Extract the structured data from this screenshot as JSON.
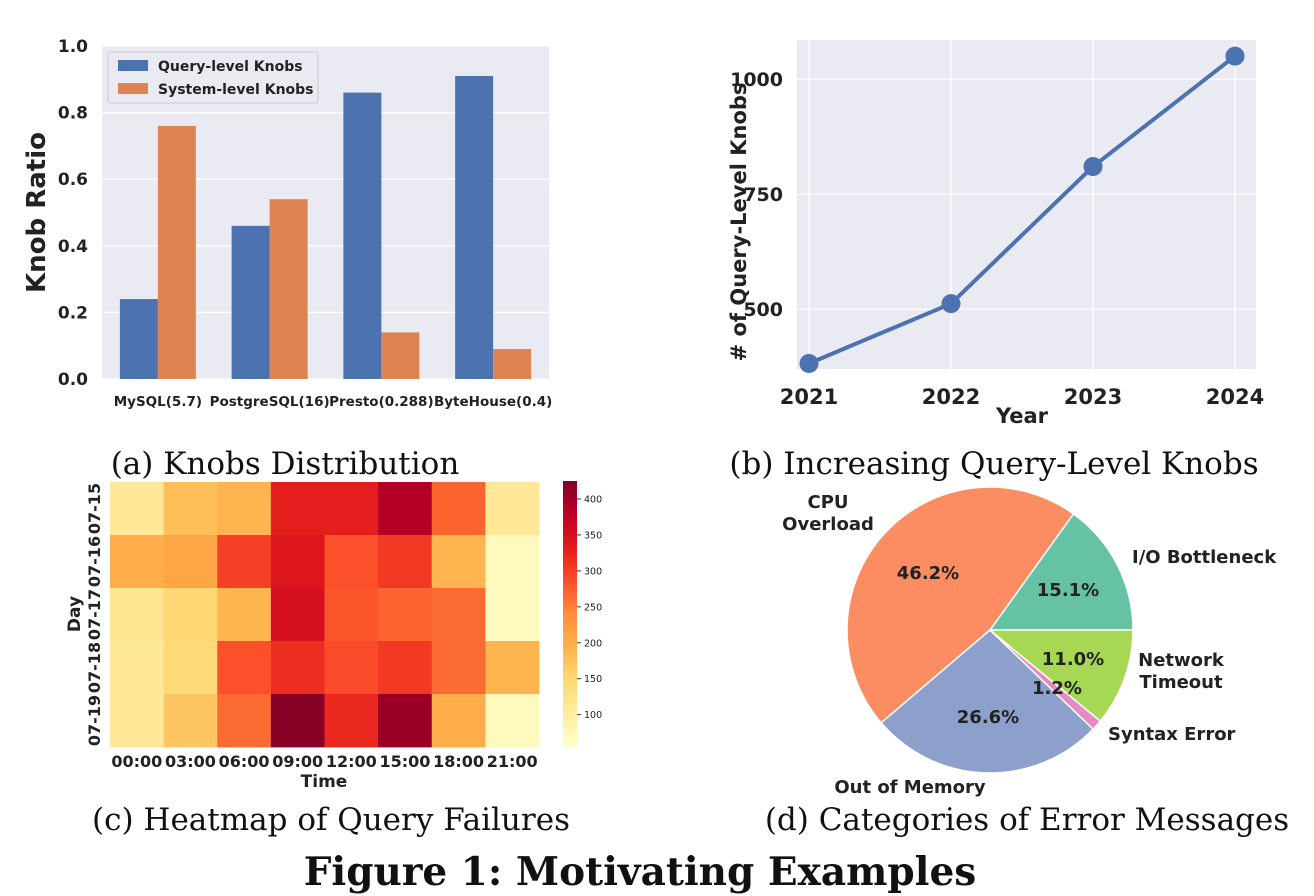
{
  "figure_title": "Figure 1: Motivating Examples",
  "chart_data": [
    {
      "type": "bar",
      "caption": "(a) Knobs Distribution",
      "ylabel": "Knob Ratio",
      "xlabel": "",
      "ylim": [
        0,
        1.0
      ],
      "yticks": [
        "0.0",
        "0.2",
        "0.4",
        "0.6",
        "0.8",
        "1.0"
      ],
      "ytick_values": [
        0,
        0.2,
        0.4,
        0.6,
        0.8,
        1.0
      ],
      "categories": [
        "MySQL(5.7)",
        "PostgreSQL(16)",
        "Presto(0.288)",
        "ByteHouse(0.4)"
      ],
      "series": [
        {
          "name": "Query-level Knobs",
          "color": "#4c72b0",
          "values": [
            0.24,
            0.46,
            0.86,
            0.91
          ]
        },
        {
          "name": "System-level Knobs",
          "color": "#dd8452",
          "values": [
            0.76,
            0.54,
            0.14,
            0.09
          ]
        }
      ],
      "legend_position": "top-left",
      "grid": true
    },
    {
      "type": "line",
      "caption": "(b) Increasing Query-Level Knobs",
      "xlabel": "Year",
      "ylabel": "# of Query-Level Knobs",
      "x": [
        2021,
        2022,
        2023,
        2024
      ],
      "xticks": [
        "2021",
        "2022",
        "2023",
        "2024"
      ],
      "yticks": [
        "500",
        "750",
        "1000"
      ],
      "ytick_values": [
        500,
        750,
        1000
      ],
      "ylim": [
        370,
        1085
      ],
      "series": [
        {
          "color": "#4c72b0",
          "values": [
            382,
            512,
            810,
            1050
          ]
        }
      ],
      "grid": true
    },
    {
      "type": "heatmap",
      "caption": "(c) Heatmap of Query Failures",
      "xlabel": "Time",
      "ylabel": "Day",
      "x": [
        "00:00",
        "03:00",
        "06:00",
        "09:00",
        "12:00",
        "15:00",
        "18:00",
        "21:00"
      ],
      "y": [
        "07-15",
        "07-16",
        "07-17",
        "07-18",
        "07-19"
      ],
      "values": [
        [
          110,
          180,
          190,
          330,
          330,
          385,
          270,
          110
        ],
        [
          200,
          210,
          300,
          340,
          285,
          305,
          190,
          70
        ],
        [
          120,
          150,
          190,
          350,
          280,
          270,
          265,
          70
        ],
        [
          110,
          145,
          285,
          315,
          290,
          305,
          265,
          190
        ],
        [
          110,
          170,
          265,
          420,
          320,
          405,
          200,
          70
        ]
      ],
      "colorbar_ticks": [
        "100",
        "150",
        "200",
        "250",
        "300",
        "350",
        "400"
      ],
      "colorbar_tick_values": [
        100,
        150,
        200,
        250,
        300,
        350,
        400
      ],
      "vmin": 55,
      "vmax": 425,
      "colormap": "YlOrRd"
    },
    {
      "type": "pie",
      "caption": "(d) Categories of Error Messages",
      "slices": [
        {
          "label": "I/O Bottleneck",
          "value": 15.1,
          "pct_label": "15.1%",
          "color": "#66c2a5"
        },
        {
          "label": "CPU Overload",
          "value": 46.2,
          "pct_label": "46.2%",
          "color": "#fc8d62"
        },
        {
          "label": "Out of Memory",
          "value": 26.6,
          "pct_label": "26.6%",
          "color": "#8da0cb"
        },
        {
          "label": "Syntax Error",
          "value": 1.2,
          "pct_label": "1.2%",
          "color": "#e78ac3"
        },
        {
          "label": "Network Timeout",
          "value": 11.0,
          "pct_label": "11.0%",
          "color": "#a6d854"
        }
      ]
    }
  ]
}
